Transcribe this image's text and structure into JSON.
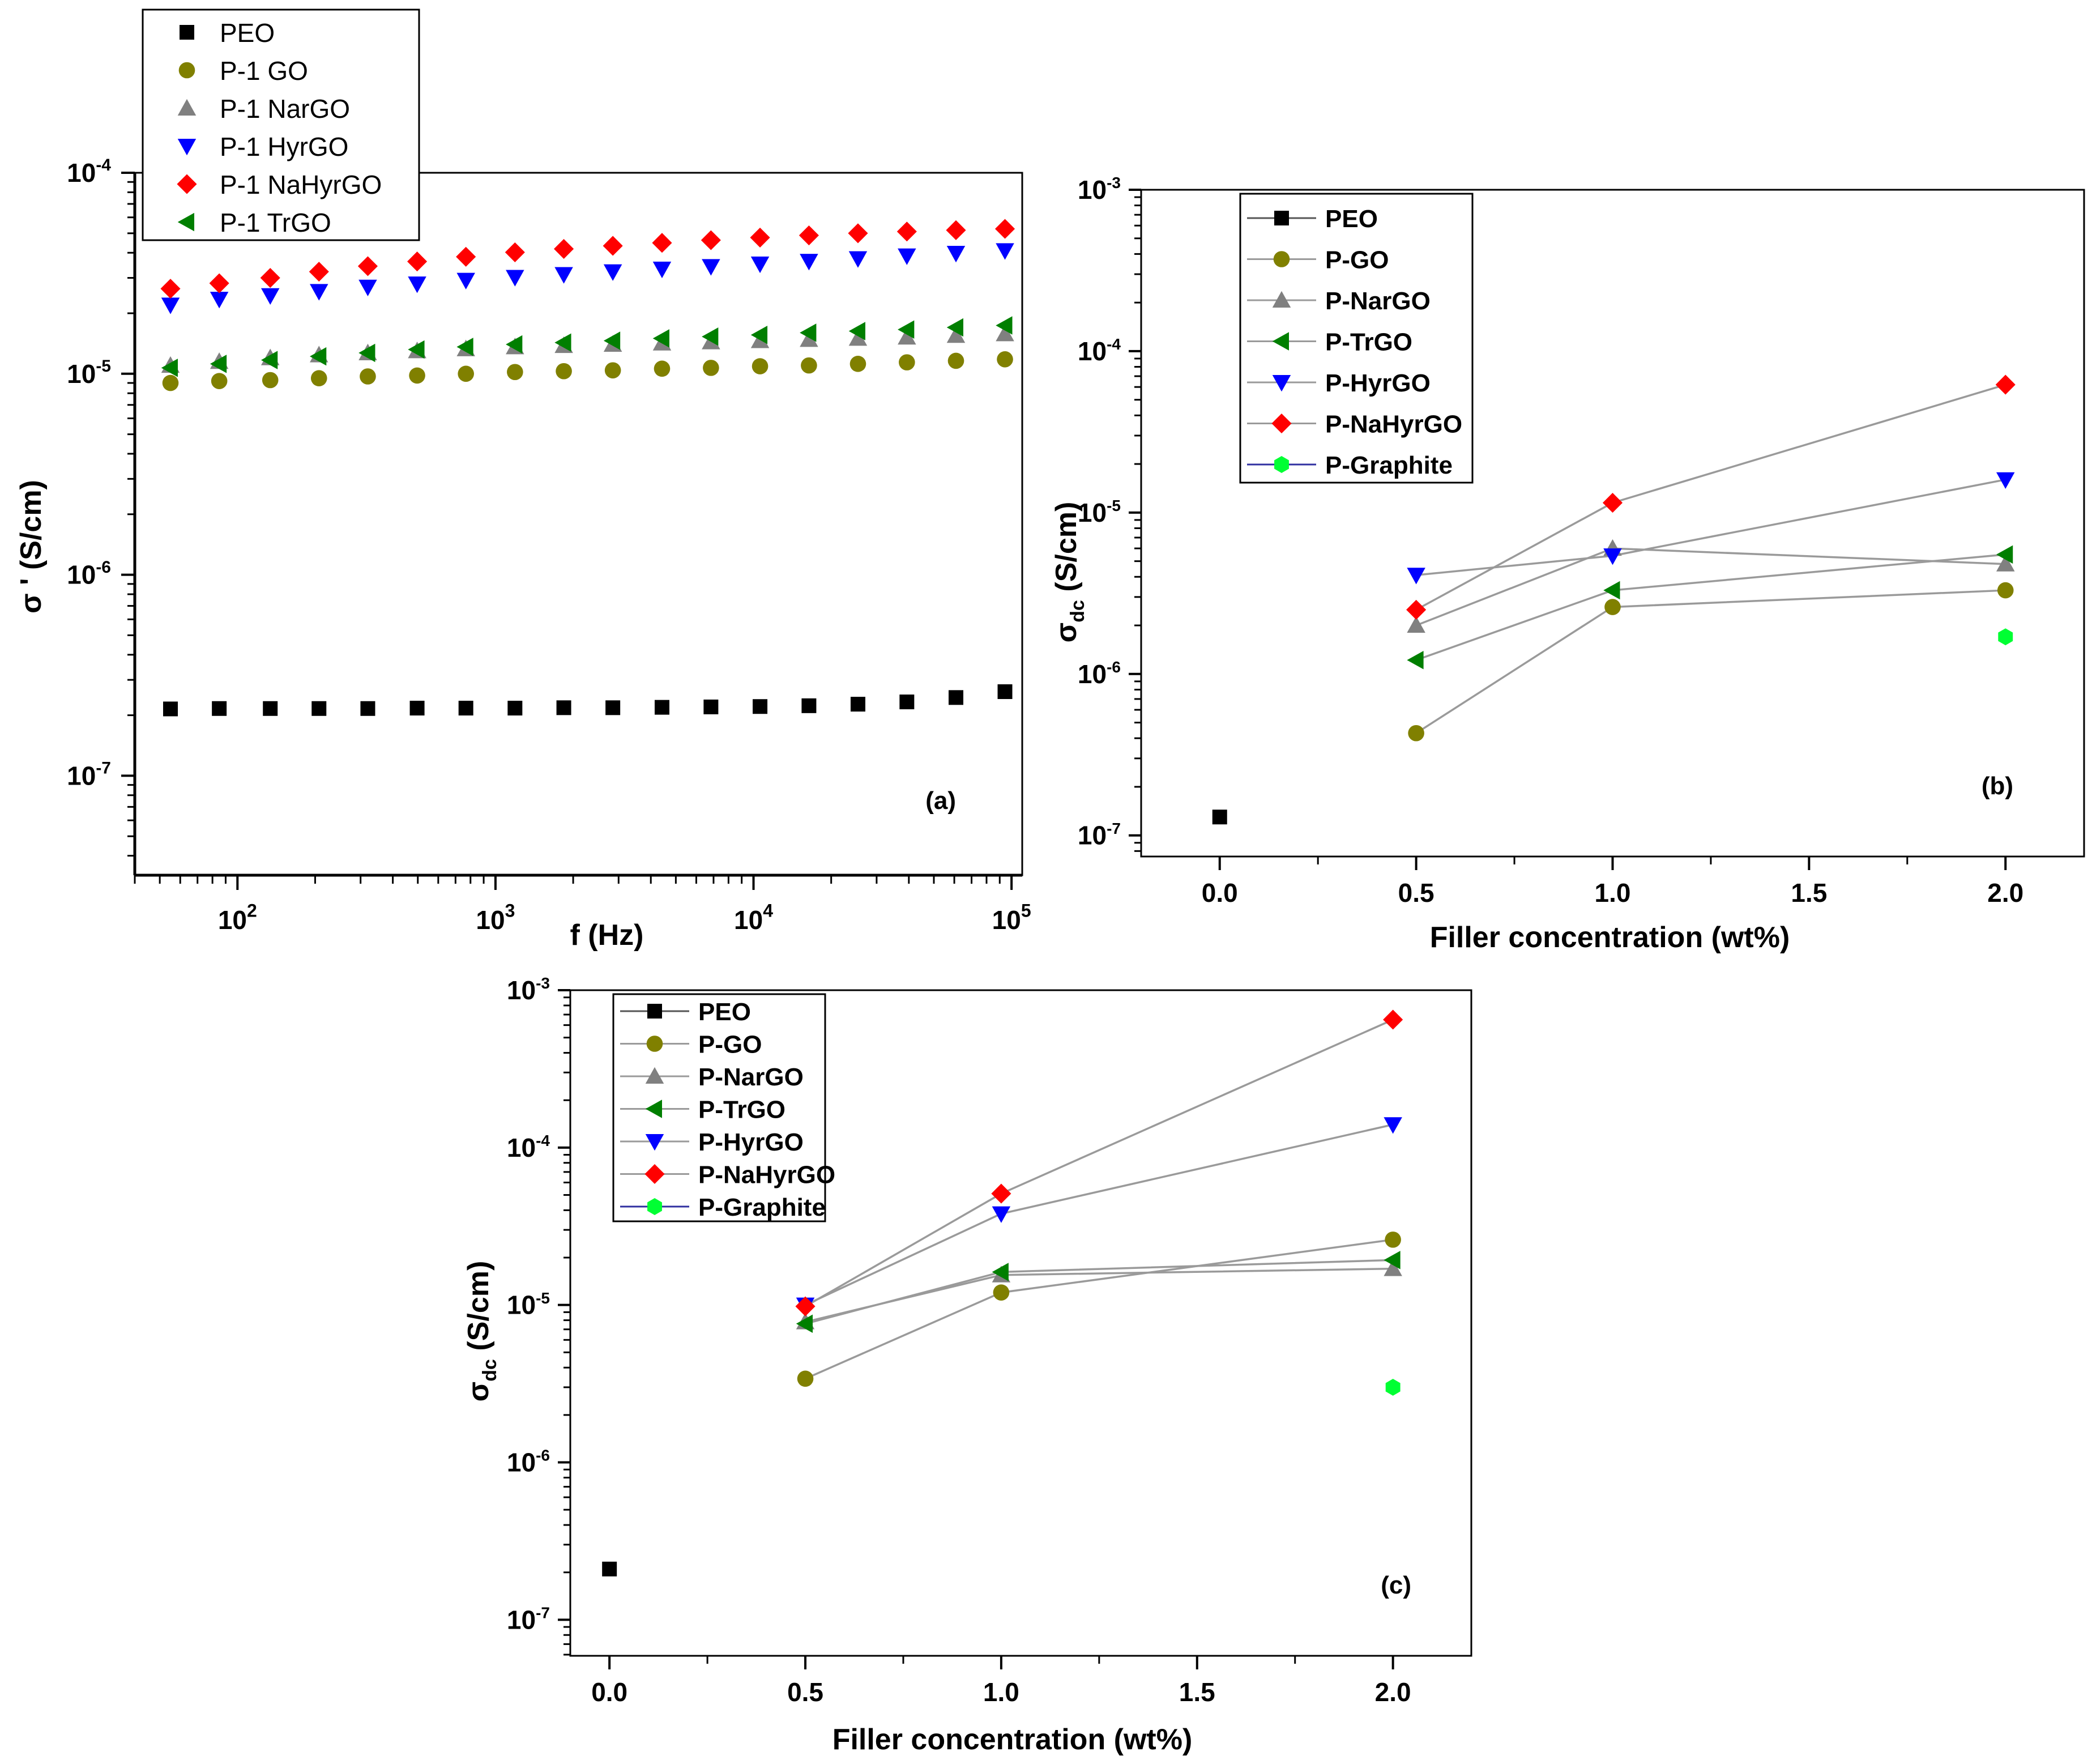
{
  "chart_data": [
    {
      "panel": "(a)",
      "type": "scatter",
      "xlabel": "f (Hz)",
      "ylabel": "σ ' (S/cm)",
      "xscale": "log",
      "yscale": "log",
      "xlim": [
        40,
        110000
      ],
      "ylim": [
        3.2e-08,
        0.0001
      ],
      "xticks": [
        {
          "value": 100,
          "base": "10",
          "exp": "2"
        },
        {
          "value": 1000,
          "base": "10",
          "exp": "3"
        },
        {
          "value": 10000,
          "base": "10",
          "exp": "4"
        },
        {
          "value": 100000,
          "base": "10",
          "exp": "5"
        }
      ],
      "yticks": [
        {
          "value": 1e-07,
          "base": "10",
          "exp": "-7"
        },
        {
          "value": 1e-06,
          "base": "10",
          "exp": "-6"
        },
        {
          "value": 1e-05,
          "base": "10",
          "exp": "-5"
        },
        {
          "value": 0.0001,
          "base": "10",
          "exp": "-4"
        }
      ],
      "legend_position": "top-left, above plot area",
      "x": [
        55,
        85,
        134,
        207,
        320,
        497,
        768,
        1190,
        1840,
        2850,
        4420,
        6840,
        10600,
        16400,
        25400,
        39300,
        60900,
        94300
      ],
      "series": [
        {
          "name": "PEO",
          "marker": "square",
          "color": "#000000",
          "values": [
            2.15e-07,
            2.16e-07,
            2.16e-07,
            2.16e-07,
            2.16e-07,
            2.17e-07,
            2.17e-07,
            2.17e-07,
            2.18e-07,
            2.18e-07,
            2.19e-07,
            2.2e-07,
            2.21e-07,
            2.23e-07,
            2.27e-07,
            2.33e-07,
            2.45e-07,
            2.62e-07
          ]
        },
        {
          "name": "P-1 GO",
          "marker": "circle",
          "color": "#808000",
          "values": [
            9e-06,
            9.2e-06,
            9.3e-06,
            9.5e-06,
            9.7e-06,
            9.8e-06,
            1e-05,
            1.02e-05,
            1.03e-05,
            1.04e-05,
            1.06e-05,
            1.07e-05,
            1.09e-05,
            1.1e-05,
            1.12e-05,
            1.14e-05,
            1.16e-05,
            1.18e-05
          ]
        },
        {
          "name": "P-1 NarGO",
          "marker": "triangle-up",
          "color": "#808080",
          "values": [
            1.1e-05,
            1.15e-05,
            1.2e-05,
            1.24e-05,
            1.27e-05,
            1.3e-05,
            1.33e-05,
            1.36e-05,
            1.38e-05,
            1.4e-05,
            1.42e-05,
            1.44e-05,
            1.46e-05,
            1.48e-05,
            1.5e-05,
            1.52e-05,
            1.55e-05,
            1.58e-05
          ]
        },
        {
          "name": "P-1 HyrGO",
          "marker": "triangle-down",
          "color": "#0000ff",
          "values": [
            2.2e-05,
            2.35e-05,
            2.45e-05,
            2.57e-05,
            2.7e-05,
            2.8e-05,
            2.92e-05,
            3.02e-05,
            3.12e-05,
            3.22e-05,
            3.32e-05,
            3.42e-05,
            3.52e-05,
            3.63e-05,
            3.74e-05,
            3.86e-05,
            3.98e-05,
            4.1e-05
          ]
        },
        {
          "name": "P-1 NaHyrGO",
          "marker": "diamond",
          "color": "#ff0000",
          "values": [
            2.65e-05,
            2.82e-05,
            3e-05,
            3.22e-05,
            3.43e-05,
            3.62e-05,
            3.82e-05,
            4.02e-05,
            4.18e-05,
            4.33e-05,
            4.48e-05,
            4.62e-05,
            4.76e-05,
            4.88e-05,
            5e-05,
            5.1e-05,
            5.18e-05,
            5.26e-05
          ]
        },
        {
          "name": "P-1 TrGO",
          "marker": "triangle-left",
          "color": "#007f00",
          "values": [
            1.07e-05,
            1.12e-05,
            1.17e-05,
            1.22e-05,
            1.27e-05,
            1.32e-05,
            1.36e-05,
            1.4e-05,
            1.43e-05,
            1.46e-05,
            1.5e-05,
            1.53e-05,
            1.56e-05,
            1.6e-05,
            1.63e-05,
            1.66e-05,
            1.7e-05,
            1.74e-05
          ]
        }
      ]
    },
    {
      "panel": "(b)",
      "type": "line",
      "xlabel": "Filler concentration (wt%)",
      "ylabel_main": "σ",
      "ylabel_sub": "dc",
      "ylabel_unit": "(S/cm)",
      "yscale": "log",
      "xlim": [
        -0.2,
        2.2
      ],
      "ylim": [
        7.4e-08,
        0.001
      ],
      "xticks": [
        "0.0",
        "0.5",
        "1.0",
        "1.5",
        "2.0"
      ],
      "yticks": [
        {
          "value": 1e-07,
          "base": "10",
          "exp": "-7"
        },
        {
          "value": 1e-06,
          "base": "10",
          "exp": "-6"
        },
        {
          "value": 1e-05,
          "base": "10",
          "exp": "-5"
        },
        {
          "value": 0.0001,
          "base": "10",
          "exp": "-4"
        },
        {
          "value": 0.001,
          "base": "10",
          "exp": "-3"
        }
      ],
      "legend_position": "top-left",
      "series": [
        {
          "name": "PEO",
          "marker": "square",
          "color": "#000000",
          "x": [
            0.0
          ],
          "values": [
            1.3e-07
          ]
        },
        {
          "name": "P-GO",
          "marker": "circle",
          "color": "#808000",
          "x": [
            0.5,
            1.0,
            2.0
          ],
          "values": [
            4.3e-07,
            2.6e-06,
            3.3e-06
          ]
        },
        {
          "name": "P-NarGO",
          "marker": "triangle-up",
          "color": "#808080",
          "x": [
            0.5,
            1.0,
            2.0
          ],
          "values": [
            2e-06,
            6e-06,
            4.8e-06
          ]
        },
        {
          "name": "P-TrGO",
          "marker": "triangle-left",
          "color": "#007f00",
          "x": [
            0.5,
            1.0,
            2.0
          ],
          "values": [
            1.22e-06,
            3.3e-06,
            5.5e-06
          ]
        },
        {
          "name": "P-HyrGO",
          "marker": "triangle-down",
          "color": "#0000ff",
          "x": [
            0.5,
            1.0,
            2.0
          ],
          "values": [
            4.1e-06,
            5.4e-06,
            1.6e-05
          ]
        },
        {
          "name": "P-NaHyrGO",
          "marker": "diamond",
          "color": "#ff0000",
          "x": [
            0.5,
            1.0,
            2.0
          ],
          "values": [
            2.5e-06,
            1.15e-05,
            6.2e-05
          ]
        },
        {
          "name": "P-Graphite",
          "marker": "hexagon",
          "color": "#00ff33",
          "x": [
            2.0
          ],
          "values": [
            1.7e-06
          ]
        }
      ]
    },
    {
      "panel": "(c)",
      "type": "line",
      "xlabel": "Filler concentration (wt%)",
      "ylabel_main": "σ",
      "ylabel_sub": "dc",
      "ylabel_unit": "(S/cm)",
      "yscale": "log",
      "xlim": [
        -0.1,
        2.2
      ],
      "ylim": [
        5.9e-08,
        0.001
      ],
      "xticks": [
        "0.0",
        "0.5",
        "1.0",
        "1.5",
        "2.0"
      ],
      "yticks": [
        {
          "value": 1e-07,
          "base": "10",
          "exp": "-7"
        },
        {
          "value": 1e-06,
          "base": "10",
          "exp": "-6"
        },
        {
          "value": 1e-05,
          "base": "10",
          "exp": "-5"
        },
        {
          "value": 0.0001,
          "base": "10",
          "exp": "-4"
        },
        {
          "value": 0.001,
          "base": "10",
          "exp": "-3"
        }
      ],
      "legend_position": "top-left",
      "series": [
        {
          "name": "PEO",
          "marker": "square",
          "color": "#000000",
          "x": [
            0.0
          ],
          "values": [
            2.1e-07
          ]
        },
        {
          "name": "P-GO",
          "marker": "circle",
          "color": "#808000",
          "x": [
            0.5,
            1.0,
            2.0
          ],
          "values": [
            3.4e-06,
            1.2e-05,
            2.6e-05
          ]
        },
        {
          "name": "P-NarGO",
          "marker": "triangle-up",
          "color": "#808080",
          "x": [
            0.5,
            1.0,
            2.0
          ],
          "values": [
            7.8e-06,
            1.55e-05,
            1.7e-05
          ]
        },
        {
          "name": "P-TrGO",
          "marker": "triangle-left",
          "color": "#007f00",
          "x": [
            0.5,
            1.0,
            2.0
          ],
          "values": [
            7.6e-06,
            1.62e-05,
            1.93e-05
          ]
        },
        {
          "name": "P-HyrGO",
          "marker": "triangle-down",
          "color": "#0000ff",
          "x": [
            0.5,
            1.0,
            2.0
          ],
          "values": [
            1e-05,
            3.8e-05,
            0.00014
          ]
        },
        {
          "name": "P-NaHyrGO",
          "marker": "diamond",
          "color": "#ff0000",
          "x": [
            0.5,
            1.0,
            2.0
          ],
          "values": [
            9.8e-06,
            5.1e-05,
            0.00065
          ]
        },
        {
          "name": "P-Graphite",
          "marker": "hexagon",
          "color": "#00ff33",
          "x": [
            2.0
          ],
          "values": [
            3e-06
          ]
        }
      ]
    }
  ]
}
